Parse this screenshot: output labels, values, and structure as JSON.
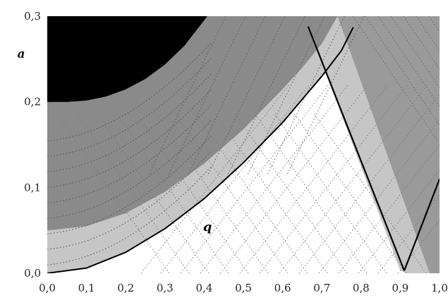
{
  "chart_data": {
    "type": "contour",
    "title": "",
    "xlabel": "",
    "ylabel": "a",
    "xlim": [
      0.0,
      1.0
    ],
    "ylim": [
      0.0,
      0.3
    ],
    "grid": false,
    "x_ticks": [
      "0,0",
      "0,1",
      "0,2",
      "0,3",
      "0,4",
      "0,5",
      "0,6",
      "0,7",
      "0,8",
      "0,9",
      "1,0"
    ],
    "y_ticks": [
      "0,0",
      "0,1",
      "0,2",
      "0,3"
    ],
    "region_label": "q",
    "colors": {
      "dark_region": "#000000",
      "mid_gray_region": "#8a8a8a",
      "light_band": "#c6c6c6",
      "right_region": "#9a9a9a",
      "white_region": "#ffffff",
      "boundary_lines": "#000000"
    },
    "regions": [
      {
        "name": "black-region",
        "fill": "dark_region",
        "boundary": [
          [
            0.0,
            0.3
          ],
          [
            0.0,
            0.2
          ],
          [
            0.05,
            0.2
          ],
          [
            0.1,
            0.2015
          ],
          [
            0.15,
            0.2063
          ],
          [
            0.2,
            0.2146
          ],
          [
            0.25,
            0.2268
          ],
          [
            0.3,
            0.2436
          ],
          [
            0.35,
            0.2657
          ],
          [
            0.4,
            0.2952
          ],
          [
            0.408,
            0.3
          ]
        ]
      },
      {
        "name": "light-gray-band",
        "fill": "light_band",
        "boundary": [
          [
            0.0,
            0.05
          ],
          [
            0.1,
            0.055
          ],
          [
            0.2,
            0.07
          ],
          [
            0.3,
            0.095
          ],
          [
            0.4,
            0.128
          ],
          [
            0.5,
            0.168
          ],
          [
            0.6,
            0.215
          ],
          [
            0.65,
            0.24
          ],
          [
            0.7,
            0.268
          ],
          [
            0.74,
            0.3
          ],
          [
            0.975,
            0.0
          ],
          [
            0.0,
            0.0
          ]
        ]
      },
      {
        "name": "white-region",
        "fill": "white_region",
        "boundary": [
          [
            0.0,
            0.0
          ],
          [
            0.1,
            0.0061
          ],
          [
            0.2,
            0.0245
          ],
          [
            0.3,
            0.052
          ],
          [
            0.4,
            0.087
          ],
          [
            0.5,
            0.129
          ],
          [
            0.6,
            0.176
          ],
          [
            0.65,
            0.203
          ],
          [
            0.7,
            0.23
          ],
          [
            0.71,
            0.233
          ],
          [
            0.9,
            0.003
          ],
          [
            0.915,
            0.0
          ],
          [
            0.0,
            0.0
          ]
        ]
      },
      {
        "name": "right-gray-region",
        "fill": "right_region",
        "boundary": [
          [
            0.74,
            0.3
          ],
          [
            1.0,
            0.3
          ],
          [
            1.0,
            0.0
          ],
          [
            0.975,
            0.0
          ]
        ]
      }
    ],
    "lines": [
      {
        "name": "parabola-boundary",
        "points": [
          [
            0.0,
            0.0
          ],
          [
            0.1,
            0.0061
          ],
          [
            0.2,
            0.0245
          ],
          [
            0.3,
            0.052
          ],
          [
            0.4,
            0.087
          ],
          [
            0.5,
            0.129
          ],
          [
            0.6,
            0.176
          ],
          [
            0.65,
            0.203
          ],
          [
            0.7,
            0.23
          ],
          [
            0.75,
            0.26
          ],
          [
            0.78,
            0.287
          ]
        ]
      },
      {
        "name": "left-linear-boundary",
        "points": [
          [
            0.665,
            0.288
          ],
          [
            0.91,
            0.003
          ]
        ]
      },
      {
        "name": "right-linear-boundary",
        "points": [
          [
            0.91,
            0.003
          ],
          [
            1.0,
            0.11
          ]
        ]
      }
    ]
  }
}
